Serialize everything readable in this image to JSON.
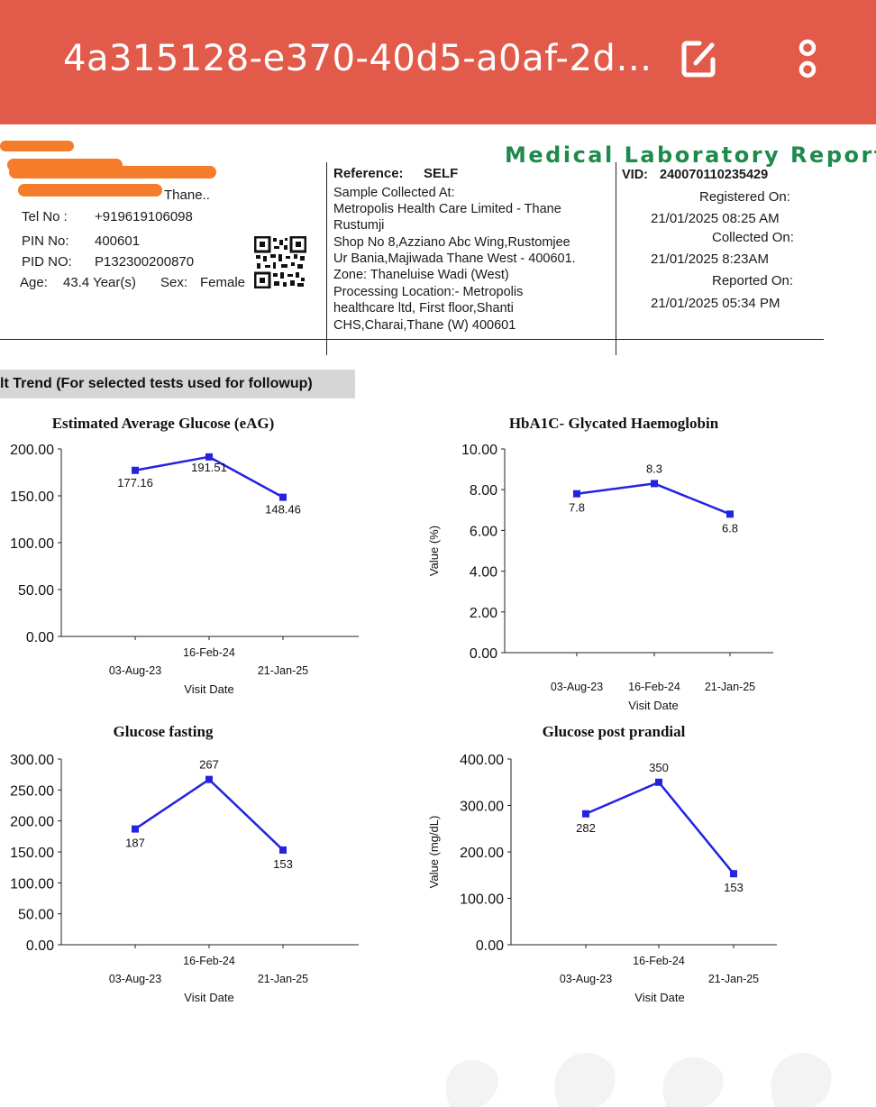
{
  "app_bar": {
    "title": "4a315128-e370-40d5-a0af-2d…",
    "icons": [
      "edit-icon",
      "more-options-icon"
    ]
  },
  "report": {
    "heading": "Medical Laboratory Report",
    "patient": {
      "address_fragment": "Thane..",
      "tel_label": "Tel No :",
      "tel_value": "+919619106098",
      "pin_label": "PIN No:",
      "pin_value": "400601",
      "pid_label": "PID NO:",
      "pid_value": "P132300200870",
      "age_label": "Age:",
      "age_value": "43.4 Year(s)",
      "sex_label": "Sex:",
      "sex_value": "Female"
    },
    "reference": {
      "label": "Reference:",
      "value": "SELF",
      "sample_collected_label": "Sample Collected At:",
      "lines": [
        "Metropolis Health Care Limited - Thane",
        "Rustumji",
        "Shop No 8,Azziano Abc Wing,Rustomjee",
        "Ur Bania,Majiwada Thane West - 400601.",
        "Zone: Thaneluise Wadi (West)",
        "Processing Location:- Metropolis",
        "healthcare ltd, First floor,Shanti",
        "CHS,Charai,Thane (W) 400601"
      ]
    },
    "visit": {
      "vid_label": "VID:",
      "vid_value": "240070110235429",
      "registered_label": "Registered On:",
      "registered_value": "21/01/2025 08:25 AM",
      "collected_label": "Collected On:",
      "collected_value": "21/01/2025 8:23AM",
      "reported_label": "Reported On:",
      "reported_value": "21/01/2025 05:34 PM"
    },
    "trend_banner": "lt Trend (For selected tests used for followup)"
  },
  "chart_data": [
    {
      "type": "line",
      "title": "Estimated Average Glucose (eAG)",
      "xlabel": "Visit Date",
      "ylabel": "",
      "categories": [
        "03-Aug-23",
        "16-Feb-24",
        "21-Jan-25"
      ],
      "values": [
        177.16,
        191.51,
        148.46
      ],
      "data_labels": [
        "177.16",
        "191.51",
        "148.46"
      ],
      "ylim": [
        0,
        200
      ],
      "yticks": [
        "0.00",
        "50.00",
        "100.00",
        "150.00",
        "200.00"
      ],
      "color": "#2323e0"
    },
    {
      "type": "line",
      "title": "HbA1C- Glycated Haemoglobin",
      "xlabel": "Visit Date",
      "ylabel": "Value (%)",
      "categories": [
        "03-Aug-23",
        "16-Feb-24",
        "21-Jan-25"
      ],
      "values": [
        7.8,
        8.3,
        6.8
      ],
      "data_labels": [
        "7.8",
        "8.3",
        "6.8"
      ],
      "ylim": [
        0,
        10
      ],
      "yticks": [
        "0.00",
        "2.00",
        "4.00",
        "6.00",
        "8.00",
        "10.00"
      ],
      "color": "#2323e0"
    },
    {
      "type": "line",
      "title": "Glucose fasting",
      "xlabel": "Visit Date",
      "ylabel": "",
      "categories": [
        "03-Aug-23",
        "16-Feb-24",
        "21-Jan-25"
      ],
      "values": [
        187,
        267,
        153
      ],
      "data_labels": [
        "187",
        "267",
        "153"
      ],
      "ylim": [
        0,
        300
      ],
      "yticks": [
        "0.00",
        "50.00",
        "100.00",
        "150.00",
        "200.00",
        "250.00",
        "300.00"
      ],
      "color": "#2323e0"
    },
    {
      "type": "line",
      "title": "Glucose post prandial",
      "xlabel": "Visit Date",
      "ylabel": "Value (mg/dL)",
      "categories": [
        "03-Aug-23",
        "16-Feb-24",
        "21-Jan-25"
      ],
      "values": [
        282,
        350,
        153
      ],
      "data_labels": [
        "282",
        "350",
        "153"
      ],
      "ylim": [
        0,
        400
      ],
      "yticks": [
        "0.00",
        "100.00",
        "200.00",
        "300.00",
        "400.00"
      ],
      "color": "#2323e0"
    }
  ]
}
